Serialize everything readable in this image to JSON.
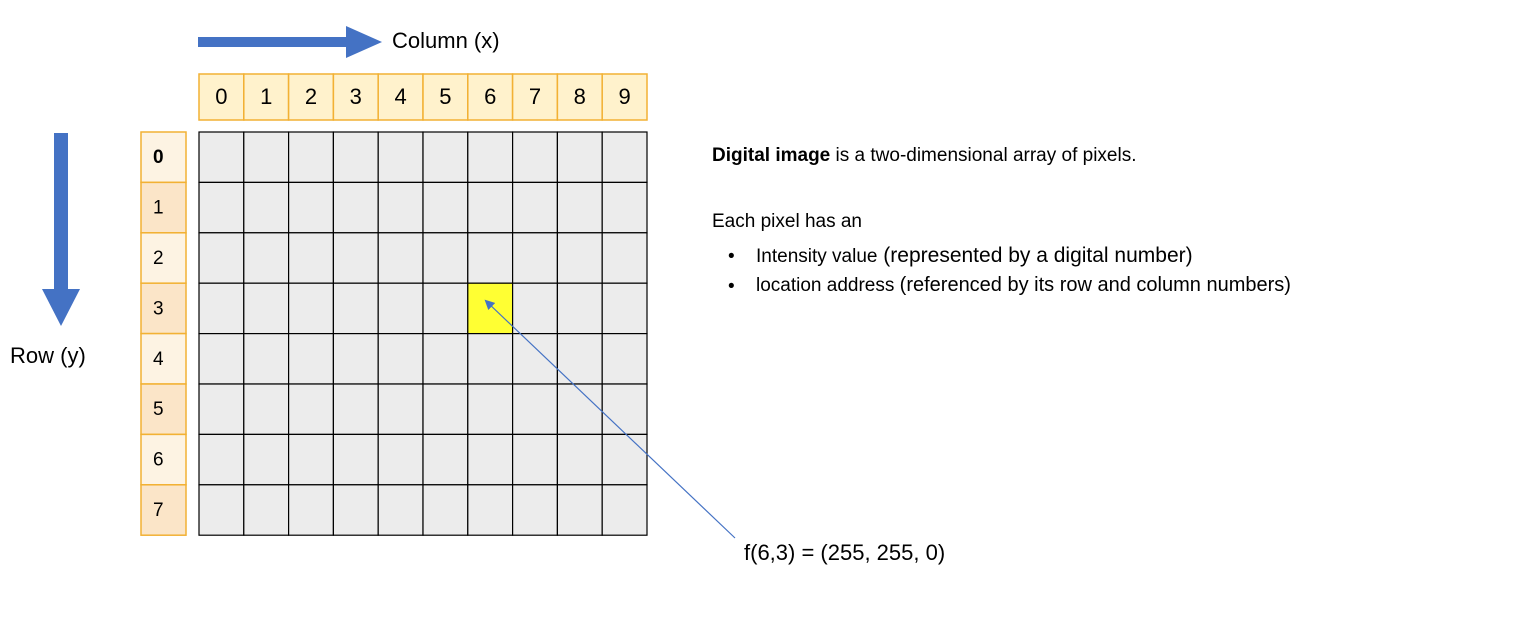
{
  "column_axis": {
    "label": "Column (x)",
    "indices": [
      "0",
      "1",
      "2",
      "3",
      "4",
      "5",
      "6",
      "7",
      "8",
      "9"
    ]
  },
  "row_axis": {
    "label": "Row (y)",
    "indices": [
      "0",
      "1",
      "2",
      "3",
      "4",
      "5",
      "6",
      "7"
    ]
  },
  "grid": {
    "columns": 10,
    "rows": 8,
    "highlight": {
      "col": 6,
      "row": 3,
      "color": "#ffff33"
    },
    "cell_color": "#ececec"
  },
  "colors": {
    "arrow": "#4472c4",
    "header_border": "#f2b134",
    "col_header_fill": "#fff2cc",
    "row_header_fill_light": "#fdf3e3",
    "row_header_fill_dark": "#fbe5c8",
    "pointer_line": "#4472c4"
  },
  "annotation": {
    "function_label": "f(6,3) = (255, 255, 0)"
  },
  "description": {
    "intro_bold": "Digital image",
    "intro_rest": " is a two-dimensional array of pixels.",
    "each_pixel": "Each pixel has an",
    "bullets": [
      {
        "bold": "Intensity value",
        "rest": " (represented by a digital number)"
      },
      {
        "bold": "location address ",
        "rest": "(referenced by its row and column numbers)"
      }
    ]
  }
}
